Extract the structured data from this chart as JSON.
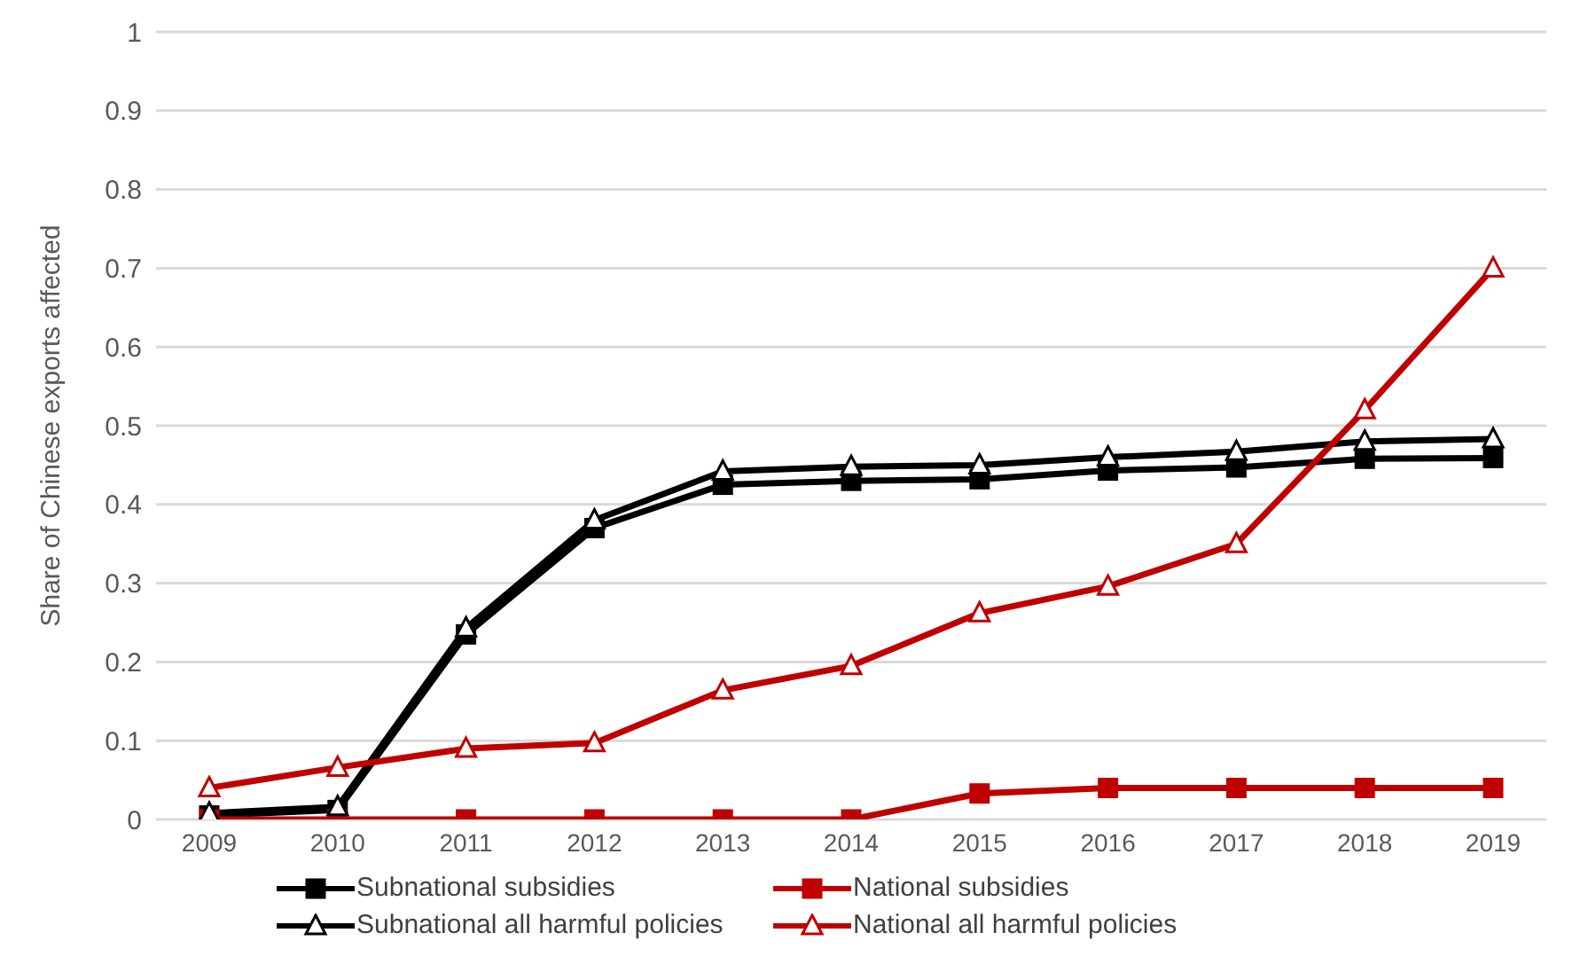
{
  "chart_data": {
    "type": "line",
    "ylabel": "Share of Chinese exports affected",
    "categories": [
      "2009",
      "2010",
      "2011",
      "2012",
      "2013",
      "2014",
      "2015",
      "2016",
      "2017",
      "2018",
      "2019"
    ],
    "series": [
      {
        "name": "Subnational subsidies",
        "color": "#000000",
        "marker": "square",
        "values": [
          0.005,
          0.012,
          0.235,
          0.37,
          0.425,
          0.43,
          0.432,
          0.443,
          0.447,
          0.458,
          0.459
        ]
      },
      {
        "name": "National subsidies",
        "color": "#c00000",
        "marker": "square",
        "values": [
          0,
          0,
          0,
          0,
          0,
          0,
          0.033,
          0.04,
          0.04,
          0.04,
          0.04
        ]
      },
      {
        "name": "Subnational all harmful policies",
        "color": "#000000",
        "marker": "triangle",
        "values": [
          0.008,
          0.016,
          0.243,
          0.38,
          0.442,
          0.448,
          0.45,
          0.46,
          0.467,
          0.48,
          0.483
        ]
      },
      {
        "name": "National all harmful policies",
        "color": "#c00000",
        "marker": "triangle",
        "values": [
          0.04,
          0.066,
          0.09,
          0.097,
          0.164,
          0.195,
          0.262,
          0.296,
          0.35,
          0.52,
          0.7
        ]
      }
    ],
    "ylim": [
      0,
      1
    ],
    "yticks": [
      0,
      0.1,
      0.2,
      0.3,
      0.4,
      0.5,
      0.6,
      0.7,
      0.8,
      0.9,
      1
    ],
    "grid": "y",
    "legend": "bottom",
    "line_style": "solid"
  }
}
